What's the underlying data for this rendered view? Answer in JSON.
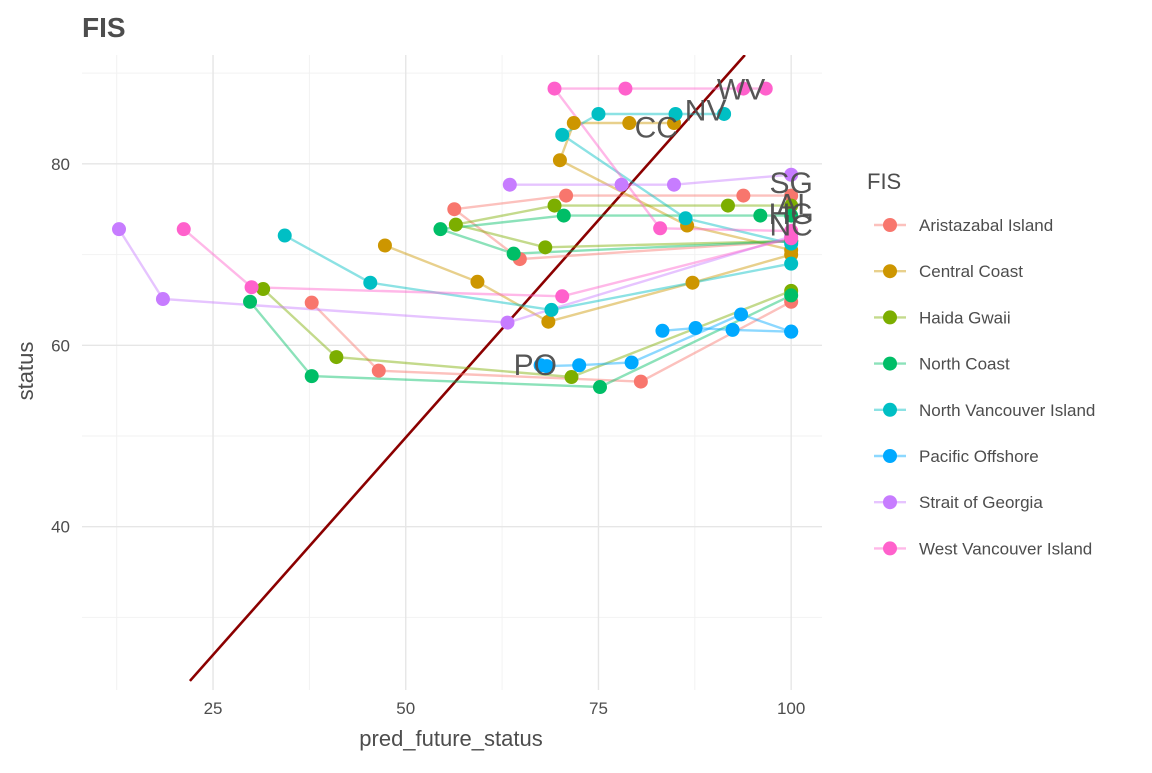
{
  "chart_data": {
    "type": "scatter",
    "title": "FIS",
    "xlabel": "pred_future_status",
    "ylabel": "status",
    "xlim": [
      8,
      104
    ],
    "ylim": [
      22,
      92
    ],
    "x_ticks": [
      25,
      50,
      75,
      100
    ],
    "y_ticks": [
      40,
      60,
      80
    ],
    "x_tick_labels": [
      "25",
      "50",
      "75",
      "100"
    ],
    "y_tick_labels": [
      "40",
      "60",
      "80"
    ],
    "grid": true,
    "legend_title": "FIS",
    "legend_position": "right",
    "reference_line": {
      "color": "#8b0000",
      "points": [
        [
          22,
          23
        ],
        [
          94,
          92
        ]
      ]
    },
    "series": [
      {
        "name": "Aristazabal Island",
        "label": "AI",
        "color": "#F8766D",
        "points": [
          [
            56.3,
            75
          ],
          [
            70.8,
            76.5
          ],
          [
            93.8,
            76.5
          ],
          [
            100,
            76.5
          ],
          [
            64.8,
            69.5
          ],
          [
            100,
            71.5
          ],
          [
            37.8,
            64.7
          ],
          [
            46.5,
            57.2
          ],
          [
            80.5,
            56
          ],
          [
            100,
            64.8
          ]
        ],
        "paths": [
          [
            [
              56.3,
              75
            ],
            [
              70.8,
              76.5
            ],
            [
              93.8,
              76.5
            ],
            [
              100,
              76.5
            ]
          ],
          [
            [
              56.3,
              75
            ],
            [
              64.8,
              69.5
            ],
            [
              100,
              71.5
            ]
          ],
          [
            [
              37.8,
              64.7
            ],
            [
              46.5,
              57.2
            ],
            [
              80.5,
              56
            ],
            [
              100,
              64.8
            ]
          ]
        ],
        "label_pos": [
          100,
          75.5
        ]
      },
      {
        "name": "Central Coast",
        "label": "CC",
        "color": "#CD9600",
        "points": [
          [
            71.8,
            84.5
          ],
          [
            79,
            84.5
          ],
          [
            84.8,
            84.5
          ],
          [
            70,
            80.4
          ],
          [
            86.5,
            73.2
          ],
          [
            100,
            70.5
          ],
          [
            47.3,
            71
          ],
          [
            59.3,
            67
          ],
          [
            68.5,
            62.6
          ],
          [
            87.2,
            66.9
          ],
          [
            100,
            70
          ]
        ],
        "paths": [
          [
            [
              71.8,
              84.5
            ],
            [
              79,
              84.5
            ],
            [
              84.8,
              84.5
            ]
          ],
          [
            [
              71.8,
              84.5
            ],
            [
              70,
              80.4
            ],
            [
              86.5,
              73.2
            ],
            [
              100,
              70.5
            ]
          ],
          [
            [
              47.3,
              71
            ],
            [
              59.3,
              67
            ],
            [
              68.5,
              62.6
            ],
            [
              87.2,
              66.9
            ],
            [
              100,
              70
            ]
          ]
        ],
        "label_pos": [
          82.5,
          84
        ]
      },
      {
        "name": "Haida Gwaii",
        "label": "HG",
        "color": "#7CAE00",
        "points": [
          [
            69.3,
            75.4
          ],
          [
            91.8,
            75.4
          ],
          [
            100,
            75.4
          ],
          [
            56.5,
            73.3
          ],
          [
            68.1,
            70.8
          ],
          [
            100,
            71.5
          ],
          [
            31.5,
            66.2
          ],
          [
            41,
            58.7
          ],
          [
            71.5,
            56.5
          ],
          [
            100,
            66
          ]
        ],
        "paths": [
          [
            [
              69.3,
              75.4
            ],
            [
              91.8,
              75.4
            ],
            [
              100,
              75.4
            ]
          ],
          [
            [
              56.5,
              73.3
            ],
            [
              69.3,
              75.4
            ]
          ],
          [
            [
              56.5,
              73.3
            ],
            [
              68.1,
              70.8
            ],
            [
              100,
              71.5
            ]
          ],
          [
            [
              31.5,
              66.2
            ],
            [
              41,
              58.7
            ],
            [
              71.5,
              56.5
            ],
            [
              100,
              66
            ]
          ]
        ],
        "label_pos": [
          100,
          74.5
        ]
      },
      {
        "name": "North Coast",
        "label": "NC",
        "color": "#00BE67",
        "points": [
          [
            54.5,
            72.8
          ],
          [
            70.5,
            74.3
          ],
          [
            96,
            74.3
          ],
          [
            100,
            74.3
          ],
          [
            64,
            70.1
          ],
          [
            100,
            71.5
          ],
          [
            29.8,
            64.8
          ],
          [
            37.8,
            56.6
          ],
          [
            75.2,
            55.4
          ],
          [
            100,
            65.5
          ]
        ],
        "paths": [
          [
            [
              54.5,
              72.8
            ],
            [
              70.5,
              74.3
            ],
            [
              96,
              74.3
            ],
            [
              100,
              74.3
            ]
          ],
          [
            [
              54.5,
              72.8
            ],
            [
              64,
              70.1
            ],
            [
              100,
              71.5
            ]
          ],
          [
            [
              29.8,
              64.8
            ],
            [
              37.8,
              56.6
            ],
            [
              75.2,
              55.4
            ],
            [
              100,
              65.5
            ]
          ]
        ],
        "label_pos": [
          100,
          73.2
        ]
      },
      {
        "name": "North Vancouver Island",
        "label": "NV",
        "color": "#00BFC4",
        "points": [
          [
            75,
            85.5
          ],
          [
            85,
            85.5
          ],
          [
            91.3,
            85.5
          ],
          [
            70.3,
            83.2
          ],
          [
            86.3,
            74
          ],
          [
            100,
            71.2
          ],
          [
            34.3,
            72.1
          ],
          [
            45.4,
            66.9
          ],
          [
            68.9,
            63.9
          ],
          [
            100,
            69
          ]
        ],
        "paths": [
          [
            [
              75,
              85.5
            ],
            [
              85,
              85.5
            ],
            [
              91.3,
              85.5
            ]
          ],
          [
            [
              70.3,
              83.2
            ],
            [
              75,
              85.5
            ]
          ],
          [
            [
              70.3,
              83.2
            ],
            [
              86.3,
              74
            ],
            [
              100,
              71.2
            ]
          ],
          [
            [
              34.3,
              72.1
            ],
            [
              45.4,
              66.9
            ],
            [
              68.9,
              63.9
            ],
            [
              100,
              69
            ]
          ]
        ],
        "label_pos": [
          88.9,
          85.9
        ]
      },
      {
        "name": "Pacific Offshore",
        "label": "PO",
        "color": "#00A9FF",
        "points": [
          [
            83.3,
            61.6
          ],
          [
            87.6,
            61.9
          ],
          [
            92.4,
            61.7
          ],
          [
            100,
            61.5
          ],
          [
            67.5,
            57.8
          ],
          [
            68.3,
            57.7
          ],
          [
            72.5,
            57.8
          ],
          [
            79.3,
            58.1
          ],
          [
            93.5,
            63.4
          ],
          [
            100,
            61.5
          ]
        ],
        "paths": [
          [
            [
              83.3,
              61.6
            ],
            [
              87.6,
              61.9
            ],
            [
              92.4,
              61.7
            ],
            [
              100,
              61.5
            ]
          ],
          [
            [
              67.5,
              57.8
            ],
            [
              68.3,
              57.7
            ],
            [
              72.5,
              57.8
            ],
            [
              79.3,
              58.1
            ],
            [
              93.5,
              63.4
            ],
            [
              100,
              61.5
            ]
          ]
        ],
        "label_pos": [
          66.8,
          57.8
        ]
      },
      {
        "name": "Strait of Georgia",
        "label": "SG",
        "color": "#C77CFF",
        "points": [
          [
            63.5,
            77.7
          ],
          [
            78,
            77.7
          ],
          [
            84.8,
            77.7
          ],
          [
            100,
            78.8
          ],
          [
            12.8,
            72.8
          ],
          [
            18.5,
            65.1
          ],
          [
            63.2,
            62.5
          ],
          [
            100,
            72
          ]
        ],
        "paths": [
          [
            [
              63.5,
              77.7
            ],
            [
              78,
              77.7
            ],
            [
              84.8,
              77.7
            ],
            [
              100,
              78.8
            ]
          ],
          [
            [
              12.8,
              72.8
            ],
            [
              18.5,
              65.1
            ],
            [
              63.2,
              62.5
            ],
            [
              100,
              72
            ]
          ]
        ],
        "label_pos": [
          100,
          77.9
        ]
      },
      {
        "name": "West Vancouver Island",
        "label": "WV",
        "color": "#FF61CC",
        "points": [
          [
            69.3,
            88.3
          ],
          [
            78.5,
            88.3
          ],
          [
            93.8,
            88.3
          ],
          [
            96.7,
            88.3
          ],
          [
            83,
            72.9
          ],
          [
            100,
            72.6
          ],
          [
            21.2,
            72.8
          ],
          [
            30,
            66.4
          ],
          [
            70.3,
            65.4
          ],
          [
            100,
            71.8
          ]
        ],
        "paths": [
          [
            [
              69.3,
              88.3
            ],
            [
              78.5,
              88.3
            ],
            [
              93.8,
              88.3
            ],
            [
              96.7,
              88.3
            ]
          ],
          [
            [
              69.3,
              88.3
            ],
            [
              83,
              72.9
            ],
            [
              100,
              72.6
            ]
          ],
          [
            [
              21.2,
              72.8
            ],
            [
              30,
              66.4
            ],
            [
              70.3,
              65.4
            ],
            [
              100,
              71.8
            ]
          ]
        ],
        "label_pos": [
          93.5,
          88.2
        ]
      }
    ]
  }
}
